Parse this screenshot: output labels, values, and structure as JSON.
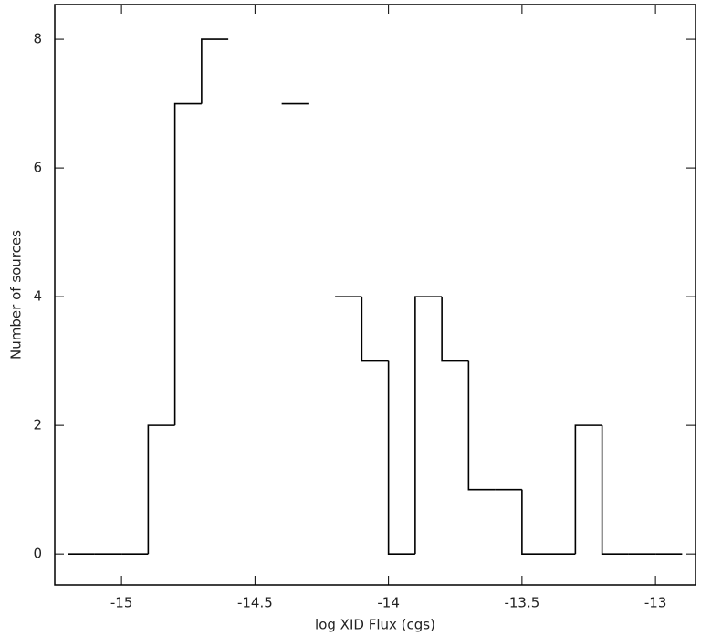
{
  "chart_data": {
    "type": "histogram",
    "xlabel": "log XID Flux (cgs)",
    "ylabel": "Number of sources",
    "bins": [
      -15.2,
      -15.1,
      -15,
      -14.9,
      -14.8,
      -14.7,
      -14.6,
      -14.5,
      -14.4,
      -14.3,
      -14.2,
      -14.1,
      -14,
      -13.9,
      -13.8,
      -13.7,
      -13.6,
      -13.5,
      -13.4,
      -13.3,
      -13.2,
      -13.1,
      -13,
      -12.9
    ],
    "values": [
      0,
      0,
      0,
      2,
      7,
      8,
      null,
      null,
      7,
      null,
      4,
      3,
      0,
      4,
      3,
      1,
      1,
      0,
      0,
      2,
      0,
      0,
      0
    ],
    "color": "#000000",
    "xlim": [
      -15.25,
      -12.85
    ],
    "xticks": [
      -15,
      -14.5,
      -14,
      -13.5,
      -13
    ],
    "ylim": [
      -0.48,
      8.54
    ],
    "yticks": [
      0,
      2,
      4,
      6,
      8
    ],
    "grid": false
  }
}
